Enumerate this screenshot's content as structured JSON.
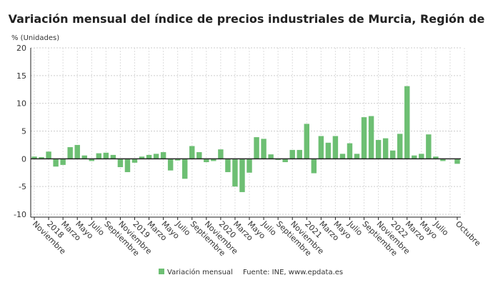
{
  "chart_data": {
    "type": "bar",
    "title": "Variación mensual del índice de precios industriales de Murcia, Región de",
    "ylabel": "% (Unidades)",
    "ylim": [
      -10,
      20
    ],
    "yticks": [
      -10,
      -5,
      0,
      5,
      10,
      15,
      20
    ],
    "grid": true,
    "bar_color": "#6dbf73",
    "x_tick_labels": [
      "Noviembre",
      "2018",
      "Marzo",
      "Mayo",
      "Julio",
      "Septiembre",
      "Noviembre",
      "2019",
      "Marzo",
      "Mayo",
      "Julio",
      "Septiembre",
      "Noviembre",
      "2020",
      "Marzo",
      "Mayo",
      "Julio",
      "Septiembre",
      "Noviembre",
      "2021",
      "Marzo",
      "Mayo",
      "Julio",
      "Septiembre",
      "Noviembre",
      "2022",
      "Marzo",
      "Mayo",
      "Julio",
      "Octubre"
    ],
    "x_tick_positions": [
      0,
      2,
      4,
      6,
      8,
      10,
      12,
      14,
      16,
      18,
      20,
      22,
      24,
      26,
      28,
      30,
      32,
      34,
      36,
      38,
      40,
      42,
      44,
      46,
      48,
      50,
      52,
      54,
      56,
      59
    ],
    "series": [
      {
        "name": "Variación mensual",
        "values": [
          0.4,
          0.3,
          1.3,
          -1.4,
          -1.1,
          2.1,
          2.5,
          0.6,
          -0.4,
          1.0,
          1.1,
          0.7,
          -1.5,
          -2.4,
          -0.7,
          0.4,
          0.7,
          0.9,
          1.2,
          -2.1,
          -0.3,
          -3.6,
          2.3,
          1.2,
          -0.6,
          -0.4,
          1.7,
          -2.4,
          -5.0,
          -6.0,
          -2.5,
          3.9,
          3.6,
          0.8,
          -0.2,
          -0.6,
          1.6,
          1.6,
          6.3,
          -2.6,
          4.1,
          2.9,
          4.1,
          0.9,
          2.8,
          0.9,
          7.5,
          7.7,
          3.4,
          3.7,
          1.5,
          4.5,
          13.1,
          0.6,
          0.9,
          4.4,
          0.4,
          -0.4,
          0.0,
          -0.9
        ]
      }
    ],
    "legend_position": "bottom",
    "source": "Fuente: INE, www.epdata.es"
  }
}
